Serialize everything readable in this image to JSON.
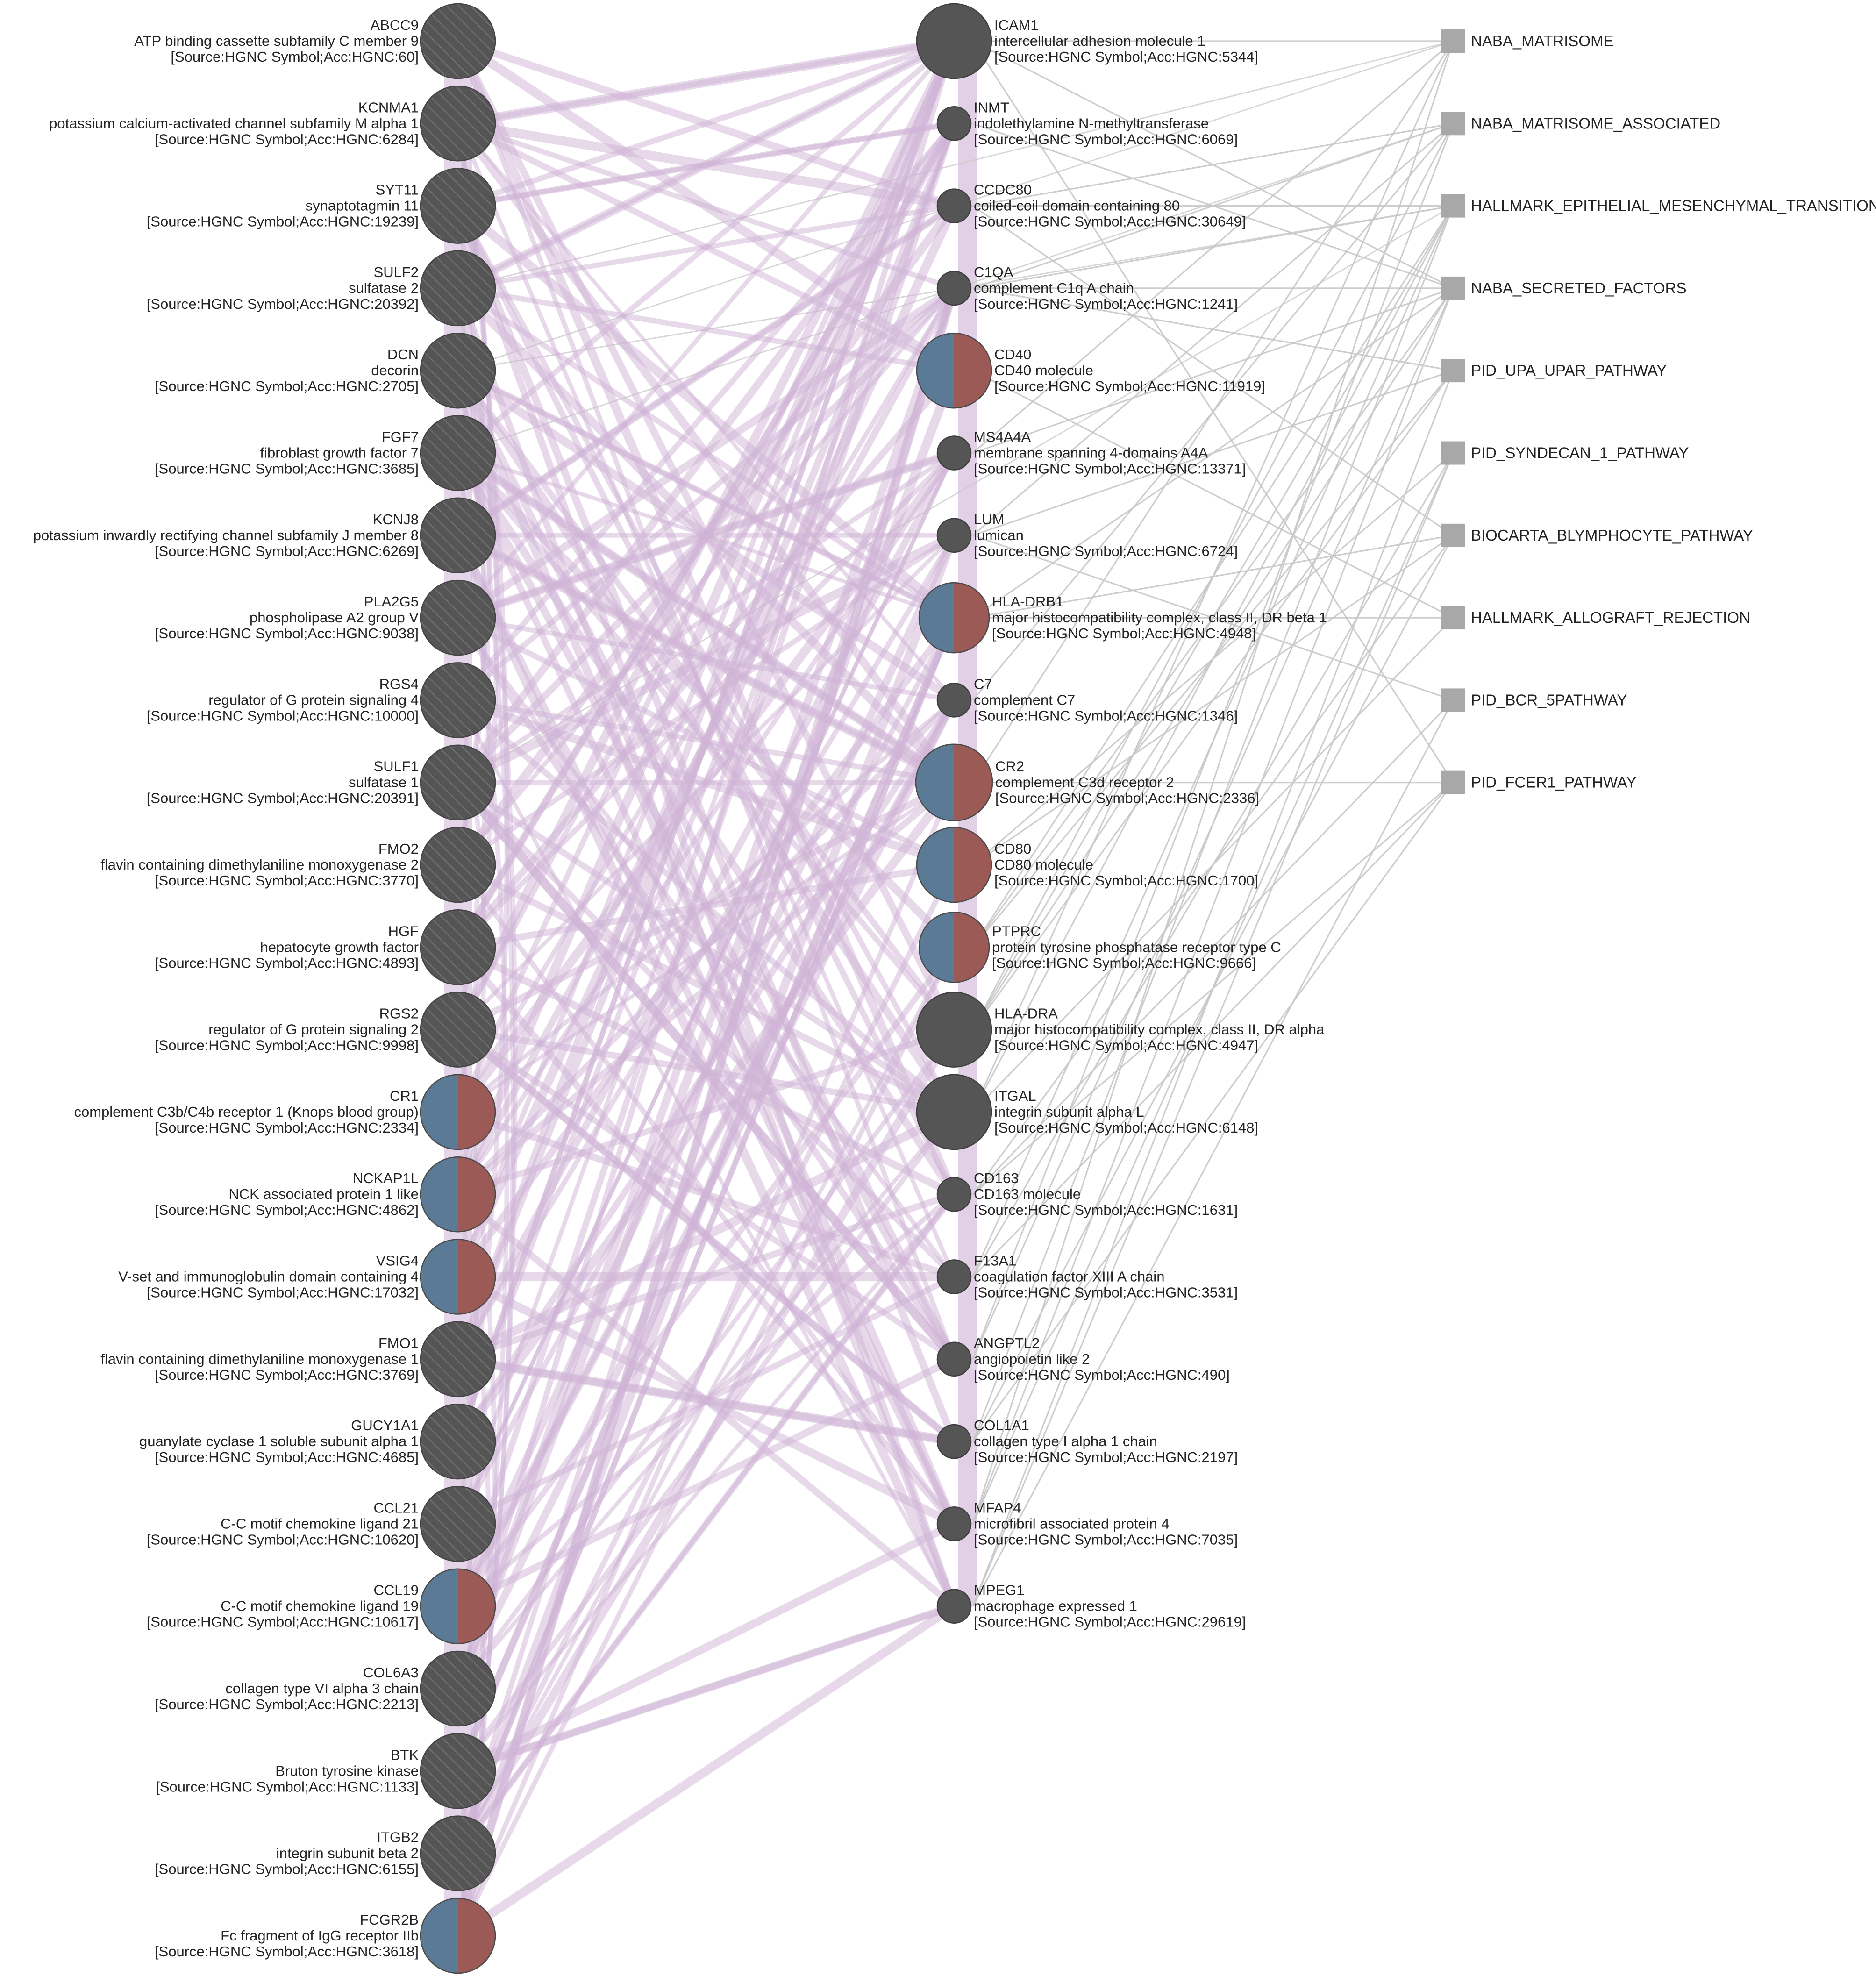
{
  "colors": {
    "node_dark": "#555555",
    "node_half_left": "#5a7a96",
    "node_half_right": "#9b5a56",
    "coexpression_edge": "#cfb3d6",
    "pathway_edge": "#c8c8c8",
    "pathway_node": "#a8a8a8",
    "hatch": "#6e6e6e"
  },
  "left_genes": [
    {
      "symbol": "ABCC9",
      "name": "ATP binding cassette subfamily C member 9",
      "source": "[Source:HGNC Symbol;Acc:HGNC:60]",
      "style": "hatched"
    },
    {
      "symbol": "KCNMA1",
      "name": "potassium calcium-activated channel subfamily M alpha 1",
      "source": "[Source:HGNC Symbol;Acc:HGNC:6284]",
      "style": "hatched"
    },
    {
      "symbol": "SYT11",
      "name": "synaptotagmin 11",
      "source": "[Source:HGNC Symbol;Acc:HGNC:19239]",
      "style": "hatched"
    },
    {
      "symbol": "SULF2",
      "name": "sulfatase 2",
      "source": "[Source:HGNC Symbol;Acc:HGNC:20392]",
      "style": "hatched"
    },
    {
      "symbol": "DCN",
      "name": "decorin",
      "source": "[Source:HGNC Symbol;Acc:HGNC:2705]",
      "style": "hatched"
    },
    {
      "symbol": "FGF7",
      "name": "fibroblast growth factor 7",
      "source": "[Source:HGNC Symbol;Acc:HGNC:3685]",
      "style": "hatched"
    },
    {
      "symbol": "KCNJ8",
      "name": "potassium inwardly rectifying channel subfamily J member 8",
      "source": "[Source:HGNC Symbol;Acc:HGNC:6269]",
      "style": "hatched"
    },
    {
      "symbol": "PLA2G5",
      "name": "phospholipase A2 group V",
      "source": "[Source:HGNC Symbol;Acc:HGNC:9038]",
      "style": "hatched"
    },
    {
      "symbol": "RGS4",
      "name": "regulator of G protein signaling 4",
      "source": "[Source:HGNC Symbol;Acc:HGNC:10000]",
      "style": "hatched"
    },
    {
      "symbol": "SULF1",
      "name": "sulfatase 1",
      "source": "[Source:HGNC Symbol;Acc:HGNC:20391]",
      "style": "hatched"
    },
    {
      "symbol": "FMO2",
      "name": "flavin containing dimethylaniline monoxygenase 2",
      "source": "[Source:HGNC Symbol;Acc:HGNC:3770]",
      "style": "hatched"
    },
    {
      "symbol": "HGF",
      "name": "hepatocyte growth factor",
      "source": "[Source:HGNC Symbol;Acc:HGNC:4893]",
      "style": "hatched"
    },
    {
      "symbol": "RGS2",
      "name": "regulator of G protein signaling 2",
      "source": "[Source:HGNC Symbol;Acc:HGNC:9998]",
      "style": "hatched"
    },
    {
      "symbol": "CR1",
      "name": "complement C3b/C4b receptor 1 (Knops blood group)",
      "source": "[Source:HGNC Symbol;Acc:HGNC:2334]",
      "style": "split"
    },
    {
      "symbol": "NCKAP1L",
      "name": "NCK associated protein 1 like",
      "source": "[Source:HGNC Symbol;Acc:HGNC:4862]",
      "style": "split"
    },
    {
      "symbol": "VSIG4",
      "name": "V-set and immunoglobulin domain containing 4",
      "source": "[Source:HGNC Symbol;Acc:HGNC:17032]",
      "style": "split"
    },
    {
      "symbol": "FMO1",
      "name": "flavin containing dimethylaniline monoxygenase 1",
      "source": "[Source:HGNC Symbol;Acc:HGNC:3769]",
      "style": "hatched"
    },
    {
      "symbol": "GUCY1A1",
      "name": "guanylate cyclase 1 soluble subunit alpha 1",
      "source": "[Source:HGNC Symbol;Acc:HGNC:4685]",
      "style": "hatched"
    },
    {
      "symbol": "CCL21",
      "name": "C-C motif chemokine ligand 21",
      "source": "[Source:HGNC Symbol;Acc:HGNC:10620]",
      "style": "hatched"
    },
    {
      "symbol": "CCL19",
      "name": "C-C motif chemokine ligand 19",
      "source": "[Source:HGNC Symbol;Acc:HGNC:10617]",
      "style": "split"
    },
    {
      "symbol": "COL6A3",
      "name": "collagen type VI alpha 3 chain",
      "source": "[Source:HGNC Symbol;Acc:HGNC:2213]",
      "style": "hatched"
    },
    {
      "symbol": "BTK",
      "name": "Bruton tyrosine kinase",
      "source": "[Source:HGNC Symbol;Acc:HGNC:1133]",
      "style": "hatched"
    },
    {
      "symbol": "ITGB2",
      "name": "integrin subunit beta 2",
      "source": "[Source:HGNC Symbol;Acc:HGNC:6155]",
      "style": "hatched"
    },
    {
      "symbol": "FCGR2B",
      "name": "Fc fragment of IgG receptor IIb",
      "source": "[Source:HGNC Symbol;Acc:HGNC:3618]",
      "style": "split"
    }
  ],
  "middle_genes": [
    {
      "symbol": "ICAM1",
      "name": "intercellular adhesion molecule 1",
      "source": "[Source:HGNC Symbol;Acc:HGNC:5344]",
      "style": "solid",
      "size": "large"
    },
    {
      "symbol": "INMT",
      "name": "indolethylamine N-methyltransferase",
      "source": "[Source:HGNC Symbol;Acc:HGNC:6069]",
      "style": "solid",
      "size": "small"
    },
    {
      "symbol": "CCDC80",
      "name": "coiled-coil domain containing 80",
      "source": "[Source:HGNC Symbol;Acc:HGNC:30649]",
      "style": "solid",
      "size": "small"
    },
    {
      "symbol": "C1QA",
      "name": "complement C1q A chain",
      "source": "[Source:HGNC Symbol;Acc:HGNC:1241]",
      "style": "solid",
      "size": "small"
    },
    {
      "symbol": "CD40",
      "name": "CD40 molecule",
      "source": "[Source:HGNC Symbol;Acc:HGNC:11919]",
      "style": "split",
      "size": "large"
    },
    {
      "symbol": "MS4A4A",
      "name": "membrane spanning 4-domains A4A",
      "source": "[Source:HGNC Symbol;Acc:HGNC:13371]",
      "style": "solid",
      "size": "small"
    },
    {
      "symbol": "LUM",
      "name": "lumican",
      "source": "[Source:HGNC Symbol;Acc:HGNC:6724]",
      "style": "solid",
      "size": "small"
    },
    {
      "symbol": "HLA-DRB1",
      "name": "major histocompatibility complex, class II, DR beta 1",
      "source": "[Source:HGNC Symbol;Acc:HGNC:4948]",
      "style": "split",
      "size": "medium"
    },
    {
      "symbol": "C7",
      "name": "complement C7",
      "source": "[Source:HGNC Symbol;Acc:HGNC:1346]",
      "style": "solid",
      "size": "small"
    },
    {
      "symbol": "CR2",
      "name": "complement C3d receptor 2",
      "source": "[Source:HGNC Symbol;Acc:HGNC:2336]",
      "style": "split",
      "size": "xlarge"
    },
    {
      "symbol": "CD80",
      "name": "CD80 molecule",
      "source": "[Source:HGNC Symbol;Acc:HGNC:1700]",
      "style": "split",
      "size": "large"
    },
    {
      "symbol": "PTPRC",
      "name": "protein tyrosine phosphatase receptor type C",
      "source": "[Source:HGNC Symbol;Acc:HGNC:9666]",
      "style": "split",
      "size": "medium"
    },
    {
      "symbol": "HLA-DRA",
      "name": "major histocompatibility complex, class II, DR alpha",
      "source": "[Source:HGNC Symbol;Acc:HGNC:4947]",
      "style": "solid",
      "size": "large"
    },
    {
      "symbol": "ITGAL",
      "name": "integrin subunit alpha L",
      "source": "[Source:HGNC Symbol;Acc:HGNC:6148]",
      "style": "solid",
      "size": "large"
    },
    {
      "symbol": "CD163",
      "name": "CD163 molecule",
      "source": "[Source:HGNC Symbol;Acc:HGNC:1631]",
      "style": "solid",
      "size": "small"
    },
    {
      "symbol": "F13A1",
      "name": "coagulation factor XIII A chain",
      "source": "[Source:HGNC Symbol;Acc:HGNC:3531]",
      "style": "solid",
      "size": "small"
    },
    {
      "symbol": "ANGPTL2",
      "name": "angiopoietin like 2",
      "source": "[Source:HGNC Symbol;Acc:HGNC:490]",
      "style": "solid",
      "size": "small"
    },
    {
      "symbol": "COL1A1",
      "name": "collagen type I alpha 1 chain",
      "source": "[Source:HGNC Symbol;Acc:HGNC:2197]",
      "style": "solid",
      "size": "small"
    },
    {
      "symbol": "MFAP4",
      "name": "microfibril associated protein 4",
      "source": "[Source:HGNC Symbol;Acc:HGNC:7035]",
      "style": "solid",
      "size": "small"
    },
    {
      "symbol": "MPEG1",
      "name": "macrophage expressed 1",
      "source": "[Source:HGNC Symbol;Acc:HGNC:29619]",
      "style": "solid",
      "size": "small"
    }
  ],
  "pathways": [
    "NABA_MATRISOME",
    "NABA_MATRISOME_ASSOCIATED",
    "HALLMARK_EPITHELIAL_MESENCHYMAL_TRANSITION",
    "NABA_SECRETED_FACTORS",
    "PID_UPA_UPAR_PATHWAY",
    "PID_SYNDECAN_1_PATHWAY",
    "BIOCARTA_BLYMPHOCYTE_PATHWAY",
    "HALLMARK_ALLOGRAFT_REJECTION",
    "PID_BCR_5PATHWAY",
    "PID_FCER1_PATHWAY"
  ]
}
